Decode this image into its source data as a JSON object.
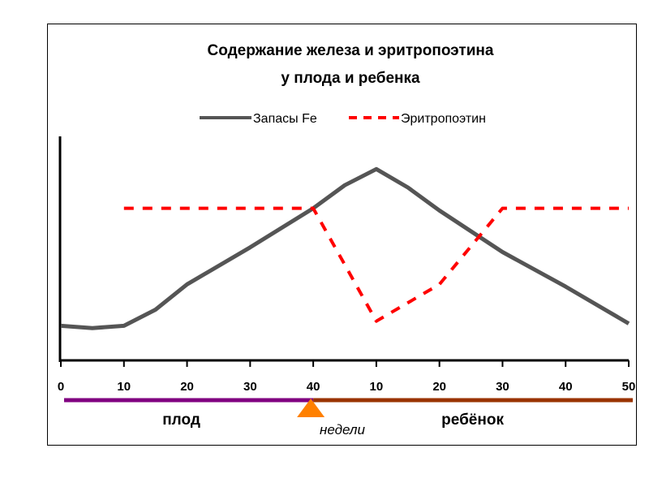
{
  "chart_data": {
    "type": "line",
    "title": [
      "Содержание железа и эритропоэтина",
      "у плода и ребенка"
    ],
    "legend": {
      "position": "top-center"
    },
    "x_ticks": [
      "0",
      "10",
      "20",
      "30",
      "40",
      "10",
      "20",
      "30",
      "40",
      "50"
    ],
    "x_range": [
      0,
      9
    ],
    "y_range": [
      0,
      100
    ],
    "xlabel": "недели",
    "phases": [
      {
        "label": "плод",
        "from": 0,
        "to": 4,
        "color": "#800080"
      },
      {
        "label": "ребёнок",
        "from": 4,
        "to": 9,
        "color": "#993300"
      }
    ],
    "birth_marker": {
      "at": 4,
      "color": "#FF8000"
    },
    "series": [
      {
        "name": "Запасы Fe",
        "color": "#555555",
        "style": "solid",
        "x": [
          0,
          0.5,
          1,
          1.5,
          2,
          3,
          4,
          4.5,
          5,
          5.5,
          6,
          7,
          8,
          9
        ],
        "y": [
          15,
          14,
          15,
          22,
          33,
          49,
          66,
          76,
          83,
          75,
          65,
          47,
          32,
          16
        ]
      },
      {
        "name": "Эритропоэтин",
        "color": "#FF0000",
        "style": "dashed",
        "x": [
          1,
          4,
          5,
          6,
          7,
          9
        ],
        "y": [
          66,
          66,
          17,
          33,
          66,
          66
        ]
      }
    ]
  }
}
